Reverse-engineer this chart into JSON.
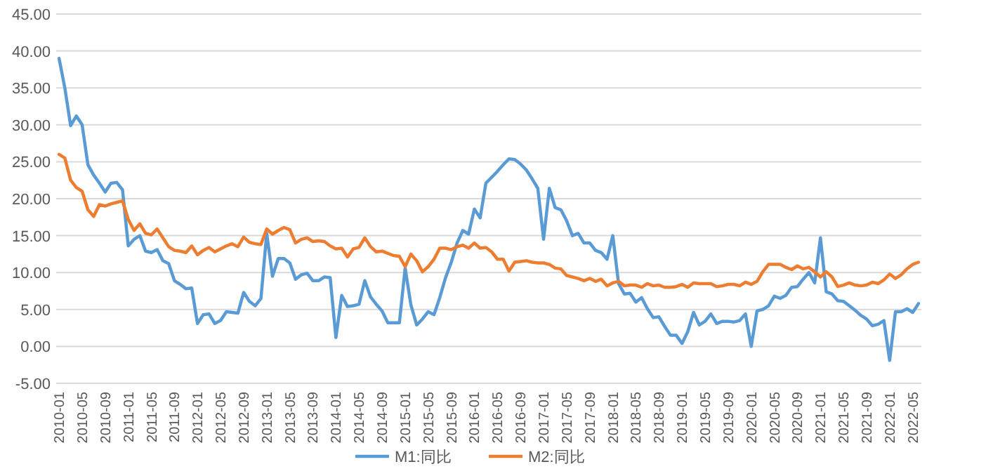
{
  "chart_data": {
    "type": "line",
    "categories": [
      "2010-01",
      null,
      null,
      null,
      "2010-05",
      null,
      null,
      null,
      "2010-09",
      null,
      null,
      null,
      "2011-01",
      null,
      null,
      null,
      "2011-05",
      null,
      null,
      null,
      "2011-09",
      null,
      null,
      null,
      "2012-01",
      null,
      null,
      null,
      "2012-05",
      null,
      null,
      null,
      "2012-09",
      null,
      null,
      null,
      "2013-01",
      null,
      null,
      null,
      "2013-05",
      null,
      null,
      null,
      "2013-09",
      null,
      null,
      null,
      "2014-01",
      null,
      null,
      null,
      "2014-05",
      null,
      null,
      null,
      "2014-09",
      null,
      null,
      null,
      "2015-01",
      null,
      null,
      null,
      "2015-05",
      null,
      null,
      null,
      "2015-09",
      null,
      null,
      null,
      "2016-01",
      null,
      null,
      null,
      "2016-05",
      null,
      null,
      null,
      "2016-09",
      null,
      null,
      null,
      "2017-01",
      null,
      null,
      null,
      "2017-05",
      null,
      null,
      null,
      "2017-09",
      null,
      null,
      null,
      "2018-01",
      null,
      null,
      null,
      "2018-05",
      null,
      null,
      null,
      "2018-09",
      null,
      null,
      null,
      "2019-01",
      null,
      null,
      null,
      "2019-05",
      null,
      null,
      null,
      "2019-09",
      null,
      null,
      null,
      "2020-01",
      null,
      null,
      null,
      "2020-05",
      null,
      null,
      null,
      "2020-09",
      null,
      null,
      null,
      "2021-01",
      null,
      null,
      null,
      "2021-05",
      null,
      null,
      null,
      "2021-09",
      null,
      null,
      null,
      "2022-01",
      null,
      null,
      null,
      "2022-05",
      null
    ],
    "series": [
      {
        "name": "M1:同比",
        "color": "#5b9bd5",
        "values": [
          39.0,
          35.0,
          29.9,
          31.2,
          30.0,
          24.6,
          23.2,
          22.1,
          20.9,
          22.1,
          22.2,
          21.2,
          13.6,
          14.5,
          15.0,
          12.9,
          12.7,
          13.1,
          11.6,
          11.2,
          8.9,
          8.4,
          7.8,
          7.9,
          3.1,
          4.3,
          4.4,
          3.1,
          3.5,
          4.7,
          4.6,
          4.5,
          7.3,
          6.1,
          5.5,
          6.5,
          15.3,
          9.5,
          11.9,
          11.9,
          11.3,
          9.1,
          9.7,
          9.9,
          8.9,
          8.9,
          9.4,
          9.3,
          1.2,
          6.9,
          5.4,
          5.5,
          5.7,
          8.9,
          6.7,
          5.7,
          4.8,
          3.2,
          3.2,
          3.2,
          10.6,
          5.6,
          2.9,
          3.7,
          4.7,
          4.3,
          6.6,
          9.3,
          11.4,
          14.0,
          15.7,
          15.2,
          18.6,
          17.4,
          22.1,
          22.9,
          23.7,
          24.6,
          25.4,
          25.3,
          24.7,
          23.9,
          22.7,
          21.4,
          14.5,
          21.4,
          18.8,
          18.5,
          17.0,
          15.0,
          15.3,
          14.0,
          14.0,
          13.0,
          12.7,
          11.8,
          15.0,
          8.5,
          7.1,
          7.2,
          6.0,
          6.6,
          5.1,
          3.9,
          4.0,
          2.7,
          1.5,
          1.5,
          0.4,
          2.0,
          4.6,
          2.9,
          3.4,
          4.4,
          3.1,
          3.4,
          3.4,
          3.3,
          3.5,
          4.4,
          0.0,
          4.8,
          5.0,
          5.5,
          6.8,
          6.5,
          6.9,
          8.0,
          8.1,
          9.1,
          10.0,
          8.6,
          14.7,
          7.4,
          7.1,
          6.2,
          6.1,
          5.5,
          4.9,
          4.2,
          3.7,
          2.8,
          3.0,
          3.5,
          -1.9,
          4.7,
          4.7,
          5.1,
          4.6,
          5.8
        ]
      },
      {
        "name": "M2:同比",
        "color": "#ed7d31",
        "values": [
          26.0,
          25.5,
          22.5,
          21.5,
          21.0,
          18.5,
          17.6,
          19.2,
          19.0,
          19.3,
          19.5,
          19.7,
          17.2,
          15.7,
          16.6,
          15.3,
          15.1,
          15.9,
          14.7,
          13.5,
          13.0,
          12.9,
          12.7,
          13.6,
          12.4,
          13.0,
          13.4,
          12.8,
          13.2,
          13.6,
          13.9,
          13.5,
          14.8,
          14.1,
          13.9,
          13.8,
          15.9,
          15.2,
          15.7,
          16.1,
          15.8,
          14.0,
          14.5,
          14.7,
          14.2,
          14.3,
          14.2,
          13.6,
          13.2,
          13.3,
          12.1,
          13.2,
          13.4,
          14.7,
          13.5,
          12.8,
          12.9,
          12.6,
          12.3,
          12.2,
          10.8,
          12.5,
          11.6,
          10.1,
          10.8,
          11.8,
          13.3,
          13.3,
          13.1,
          13.5,
          13.7,
          13.3,
          14.0,
          13.3,
          13.4,
          12.8,
          11.8,
          11.8,
          10.2,
          11.4,
          11.5,
          11.6,
          11.4,
          11.3,
          11.3,
          11.1,
          10.6,
          10.5,
          9.6,
          9.4,
          9.2,
          8.9,
          9.2,
          8.8,
          9.1,
          8.2,
          8.6,
          8.8,
          8.2,
          8.3,
          8.3,
          8.0,
          8.5,
          8.2,
          8.3,
          8.0,
          8.0,
          8.1,
          8.4,
          8.0,
          8.6,
          8.5,
          8.5,
          8.5,
          8.1,
          8.2,
          8.4,
          8.4,
          8.2,
          8.7,
          8.4,
          8.8,
          10.1,
          11.1,
          11.1,
          11.1,
          10.7,
          10.4,
          10.9,
          10.5,
          10.7,
          10.1,
          9.4,
          10.1,
          9.4,
          8.1,
          8.3,
          8.6,
          8.3,
          8.2,
          8.3,
          8.7,
          8.5,
          9.0,
          9.8,
          9.2,
          9.7,
          10.5,
          11.1,
          11.4
        ]
      }
    ],
    "ylim": [
      -5,
      45
    ],
    "yticks": [
      {
        "value": -5,
        "label": "-5.00"
      },
      {
        "value": 0,
        "label": "0.00"
      },
      {
        "value": 5,
        "label": "5.00"
      },
      {
        "value": 10,
        "label": "10.00"
      },
      {
        "value": 15,
        "label": "15.00"
      },
      {
        "value": 20,
        "label": "20.00"
      },
      {
        "value": 25,
        "label": "25.00"
      },
      {
        "value": 30,
        "label": "30.00"
      },
      {
        "value": 35,
        "label": "35.00"
      },
      {
        "value": 40,
        "label": "40.00"
      },
      {
        "value": 45,
        "label": "45.00"
      }
    ],
    "grid": "y",
    "legend": "bottom",
    "marker": "none",
    "line_style": "solid"
  }
}
